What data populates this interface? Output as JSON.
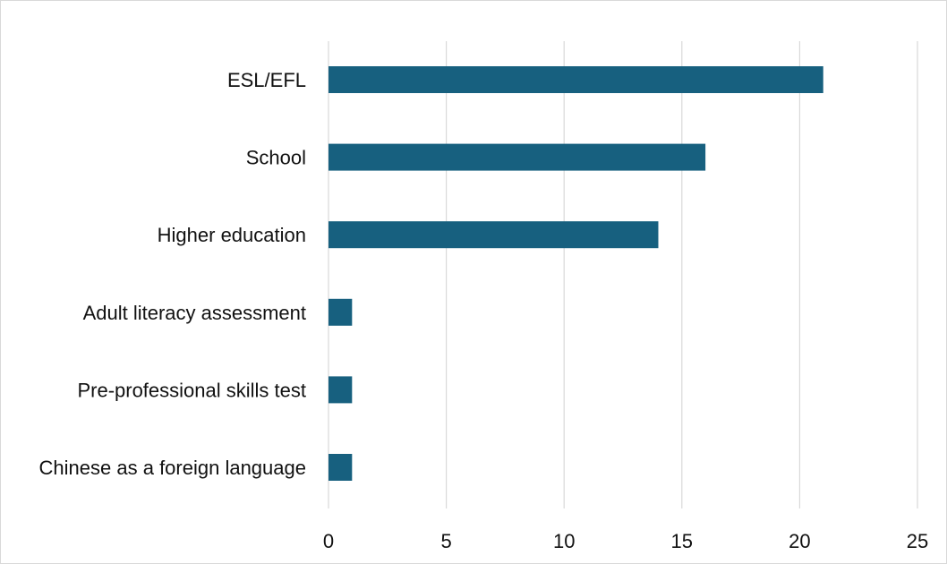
{
  "chart_data": {
    "type": "bar",
    "orientation": "horizontal",
    "title": "",
    "xlabel": "",
    "ylabel": "",
    "categories": [
      "ESL/EFL",
      "School",
      "Higher education",
      "Adult literacy assessment",
      "Pre-professional skills test",
      "Chinese as a foreign language"
    ],
    "values": [
      21,
      16,
      14,
      1,
      1,
      1
    ],
    "xlim": [
      0,
      25
    ],
    "x_ticks": [
      0,
      5,
      10,
      15,
      20,
      25
    ],
    "grid": true,
    "legend": "none",
    "bar_color": "#17607f",
    "grid_color": "#d9d9d9"
  }
}
